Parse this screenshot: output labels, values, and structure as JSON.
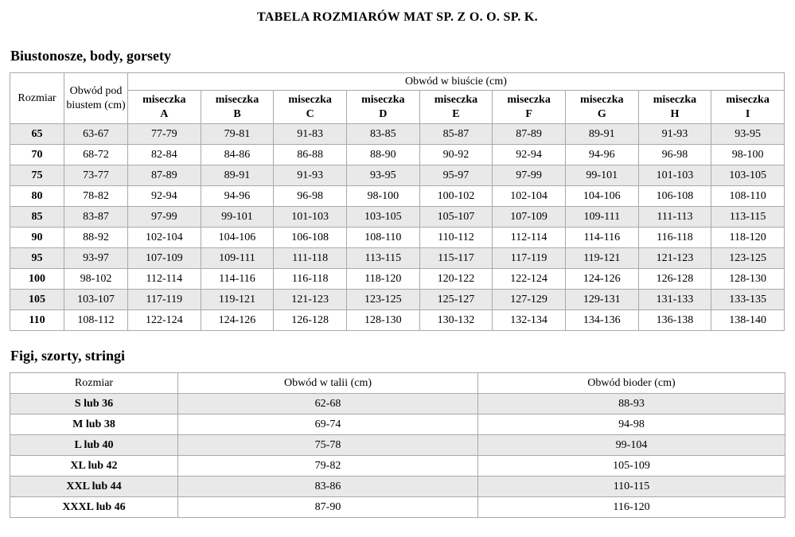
{
  "page": {
    "title": "TABELA ROZMIARÓW MAT SP. Z O. O. SP. K."
  },
  "colors": {
    "row_shade": "#e9e9e9",
    "border": "#a9a9a9",
    "text": "#000000",
    "background": "#ffffff"
  },
  "bras": {
    "section_title": "Biustonosze, body, gorsety",
    "headers": {
      "size": "Rozmiar",
      "underbust": "Obwód pod biustem (cm)",
      "bust_group": "Obwód w biuście (cm)",
      "cup_word": "miseczka",
      "cup_letters": [
        "A",
        "B",
        "C",
        "D",
        "E",
        "F",
        "G",
        "H",
        "I"
      ]
    },
    "rows": [
      {
        "size": "65",
        "underbust": "63-67",
        "cups": [
          "77-79",
          "79-81",
          "91-83",
          "83-85",
          "85-87",
          "87-89",
          "89-91",
          "91-93",
          "93-95"
        ]
      },
      {
        "size": "70",
        "underbust": "68-72",
        "cups": [
          "82-84",
          "84-86",
          "86-88",
          "88-90",
          "90-92",
          "92-94",
          "94-96",
          "96-98",
          "98-100"
        ]
      },
      {
        "size": "75",
        "underbust": "73-77",
        "cups": [
          "87-89",
          "89-91",
          "91-93",
          "93-95",
          "95-97",
          "97-99",
          "99-101",
          "101-103",
          "103-105"
        ]
      },
      {
        "size": "80",
        "underbust": "78-82",
        "cups": [
          "92-94",
          "94-96",
          "96-98",
          "98-100",
          "100-102",
          "102-104",
          "104-106",
          "106-108",
          "108-110"
        ]
      },
      {
        "size": "85",
        "underbust": "83-87",
        "cups": [
          "97-99",
          "99-101",
          "101-103",
          "103-105",
          "105-107",
          "107-109",
          "109-111",
          "111-113",
          "113-115"
        ]
      },
      {
        "size": "90",
        "underbust": "88-92",
        "cups": [
          "102-104",
          "104-106",
          "106-108",
          "108-110",
          "110-112",
          "112-114",
          "114-116",
          "116-118",
          "118-120"
        ]
      },
      {
        "size": "95",
        "underbust": "93-97",
        "cups": [
          "107-109",
          "109-111",
          "111-118",
          "113-115",
          "115-117",
          "117-119",
          "119-121",
          "121-123",
          "123-125"
        ]
      },
      {
        "size": "100",
        "underbust": "98-102",
        "cups": [
          "112-114",
          "114-116",
          "116-118",
          "118-120",
          "120-122",
          "122-124",
          "124-126",
          "126-128",
          "128-130"
        ]
      },
      {
        "size": "105",
        "underbust": "103-107",
        "cups": [
          "117-119",
          "119-121",
          "121-123",
          "123-125",
          "125-127",
          "127-129",
          "129-131",
          "131-133",
          "133-135"
        ]
      },
      {
        "size": "110",
        "underbust": "108-112",
        "cups": [
          "122-124",
          "124-126",
          "126-128",
          "128-130",
          "130-132",
          "132-134",
          "134-136",
          "136-138",
          "138-140"
        ]
      }
    ]
  },
  "bottoms": {
    "section_title": "Figi, szorty, stringi",
    "headers": {
      "size": "Rozmiar",
      "waist": "Obwód w talii (cm)",
      "hips": "Obwód bioder (cm)"
    },
    "rows": [
      {
        "size": "S lub 36",
        "waist": "62-68",
        "hips": "88-93"
      },
      {
        "size": "M lub 38",
        "waist": "69-74",
        "hips": "94-98"
      },
      {
        "size": "L lub 40",
        "waist": "75-78",
        "hips": "99-104"
      },
      {
        "size": "XL lub 42",
        "waist": "79-82",
        "hips": "105-109"
      },
      {
        "size": "XXL lub 44",
        "waist": "83-86",
        "hips": "110-115"
      },
      {
        "size": "XXXL lub 46",
        "waist": "87-90",
        "hips": "116-120"
      }
    ]
  }
}
